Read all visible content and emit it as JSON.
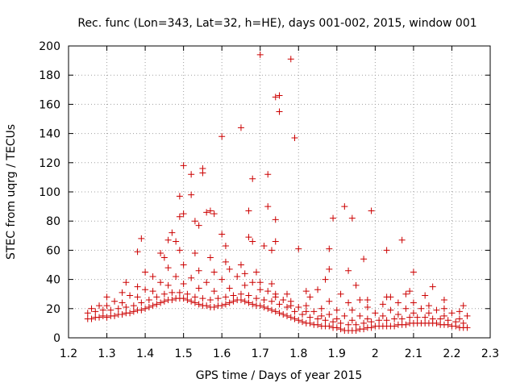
{
  "chart_data": {
    "type": "scatter",
    "title": "Rec. func (Lon=343, Lat=32, h=HE), days 001-002, 2015, window 001",
    "xlabel": "GPS time / Days of year 2015",
    "ylabel": "STEC from uqrg / TECUs",
    "xlim": [
      1.2,
      2.3
    ],
    "ylim": [
      0,
      200
    ],
    "grid": true,
    "marker": "plus",
    "color": "#cc0000",
    "x_ticks": [
      "1.2",
      "1.3",
      "1.4",
      "1.5",
      "1.6",
      "1.7",
      "1.8",
      "1.9",
      "2",
      "2.1",
      "2.2",
      "2.3"
    ],
    "y_ticks": [
      "0",
      "20",
      "40",
      "60",
      "80",
      "100",
      "120",
      "140",
      "160",
      "180",
      "200"
    ],
    "series": [
      {
        "points": [
          [
            1.25,
            13
          ],
          [
            1.26,
            13
          ],
          [
            1.27,
            14
          ],
          [
            1.28,
            14
          ],
          [
            1.29,
            15
          ],
          [
            1.3,
            14
          ],
          [
            1.31,
            15
          ],
          [
            1.32,
            15
          ],
          [
            1.33,
            16
          ],
          [
            1.34,
            16
          ],
          [
            1.35,
            17
          ],
          [
            1.36,
            17
          ],
          [
            1.37,
            18
          ],
          [
            1.38,
            19
          ],
          [
            1.39,
            19
          ],
          [
            1.4,
            20
          ],
          [
            1.41,
            21
          ],
          [
            1.42,
            22
          ],
          [
            1.43,
            23
          ],
          [
            1.44,
            24
          ],
          [
            1.45,
            25
          ],
          [
            1.46,
            26
          ],
          [
            1.47,
            26
          ],
          [
            1.48,
            27
          ],
          [
            1.49,
            27
          ],
          [
            1.5,
            27
          ],
          [
            1.51,
            26
          ],
          [
            1.52,
            25
          ],
          [
            1.53,
            24
          ],
          [
            1.54,
            23
          ],
          [
            1.55,
            22
          ],
          [
            1.56,
            22
          ],
          [
            1.57,
            21
          ],
          [
            1.58,
            21
          ],
          [
            1.59,
            22
          ],
          [
            1.6,
            22
          ],
          [
            1.61,
            23
          ],
          [
            1.62,
            24
          ],
          [
            1.63,
            25
          ],
          [
            1.64,
            26
          ],
          [
            1.65,
            26
          ],
          [
            1.66,
            25
          ],
          [
            1.67,
            24
          ],
          [
            1.68,
            23
          ],
          [
            1.69,
            22
          ],
          [
            1.7,
            22
          ],
          [
            1.71,
            21
          ],
          [
            1.72,
            20
          ],
          [
            1.73,
            19
          ],
          [
            1.74,
            18
          ],
          [
            1.75,
            17
          ],
          [
            1.76,
            16
          ],
          [
            1.77,
            15
          ],
          [
            1.78,
            14
          ],
          [
            1.79,
            13
          ],
          [
            1.8,
            12
          ],
          [
            1.81,
            11
          ],
          [
            1.82,
            10
          ],
          [
            1.83,
            10
          ],
          [
            1.84,
            9
          ],
          [
            1.85,
            9
          ],
          [
            1.86,
            8
          ],
          [
            1.87,
            8
          ],
          [
            1.88,
            8
          ],
          [
            1.89,
            7
          ],
          [
            1.9,
            7
          ],
          [
            1.91,
            6
          ],
          [
            1.92,
            5
          ],
          [
            1.93,
            5
          ],
          [
            1.94,
            5
          ],
          [
            1.95,
            5
          ],
          [
            1.96,
            6
          ],
          [
            1.97,
            6
          ],
          [
            1.98,
            7
          ],
          [
            1.99,
            7
          ],
          [
            2.0,
            8
          ],
          [
            2.01,
            8
          ],
          [
            2.02,
            8
          ],
          [
            2.03,
            8
          ],
          [
            2.04,
            8
          ],
          [
            2.05,
            8
          ],
          [
            2.06,
            9
          ],
          [
            2.07,
            9
          ],
          [
            2.08,
            9
          ],
          [
            2.09,
            10
          ],
          [
            2.1,
            10
          ],
          [
            2.11,
            10
          ],
          [
            2.12,
            10
          ],
          [
            2.13,
            10
          ],
          [
            2.14,
            10
          ],
          [
            2.15,
            10
          ],
          [
            2.16,
            10
          ],
          [
            2.17,
            9
          ],
          [
            2.18,
            9
          ],
          [
            2.19,
            9
          ],
          [
            2.2,
            8
          ],
          [
            2.21,
            8
          ],
          [
            2.22,
            7
          ],
          [
            2.23,
            7
          ],
          [
            2.24,
            7
          ],
          [
            1.25,
            17
          ],
          [
            1.27,
            18
          ],
          [
            1.29,
            19
          ],
          [
            1.31,
            19
          ],
          [
            1.33,
            20
          ],
          [
            1.35,
            21
          ],
          [
            1.37,
            22
          ],
          [
            1.39,
            24
          ],
          [
            1.41,
            26
          ],
          [
            1.43,
            28
          ],
          [
            1.45,
            30
          ],
          [
            1.47,
            31
          ],
          [
            1.49,
            31
          ],
          [
            1.51,
            30
          ],
          [
            1.53,
            28
          ],
          [
            1.55,
            27
          ],
          [
            1.57,
            26
          ],
          [
            1.59,
            27
          ],
          [
            1.61,
            28
          ],
          [
            1.63,
            29
          ],
          [
            1.65,
            30
          ],
          [
            1.67,
            29
          ],
          [
            1.69,
            27
          ],
          [
            1.71,
            26
          ],
          [
            1.73,
            25
          ],
          [
            1.75,
            23
          ],
          [
            1.77,
            21
          ],
          [
            1.79,
            18
          ],
          [
            1.81,
            16
          ],
          [
            1.83,
            14
          ],
          [
            1.85,
            13
          ],
          [
            1.87,
            12
          ],
          [
            1.89,
            11
          ],
          [
            1.91,
            10
          ],
          [
            1.93,
            9
          ],
          [
            1.95,
            9
          ],
          [
            1.97,
            10
          ],
          [
            1.99,
            11
          ],
          [
            2.01,
            12
          ],
          [
            2.03,
            12
          ],
          [
            2.05,
            13
          ],
          [
            2.07,
            13
          ],
          [
            2.09,
            14
          ],
          [
            2.11,
            14
          ],
          [
            2.13,
            14
          ],
          [
            2.15,
            13
          ],
          [
            2.17,
            13
          ],
          [
            2.19,
            12
          ],
          [
            2.21,
            11
          ],
          [
            2.23,
            10
          ],
          [
            1.26,
            20
          ],
          [
            1.3,
            22
          ],
          [
            1.34,
            24
          ],
          [
            1.38,
            28
          ],
          [
            1.42,
            32
          ],
          [
            1.46,
            36
          ],
          [
            1.5,
            37
          ],
          [
            1.54,
            34
          ],
          [
            1.58,
            32
          ],
          [
            1.62,
            34
          ],
          [
            1.66,
            36
          ],
          [
            1.7,
            33
          ],
          [
            1.74,
            28
          ],
          [
            1.78,
            22
          ],
          [
            1.82,
            18
          ],
          [
            1.86,
            15
          ],
          [
            1.9,
            13
          ],
          [
            1.94,
            12
          ],
          [
            1.98,
            13
          ],
          [
            2.02,
            15
          ],
          [
            2.06,
            16
          ],
          [
            2.1,
            17
          ],
          [
            2.14,
            17
          ],
          [
            2.18,
            15
          ],
          [
            2.22,
            13
          ],
          [
            1.28,
            22
          ],
          [
            1.32,
            25
          ],
          [
            1.36,
            29
          ],
          [
            1.4,
            33
          ],
          [
            1.44,
            38
          ],
          [
            1.48,
            42
          ],
          [
            1.52,
            41
          ],
          [
            1.56,
            38
          ],
          [
            1.6,
            40
          ],
          [
            1.64,
            42
          ],
          [
            1.68,
            38
          ],
          [
            1.72,
            32
          ],
          [
            1.76,
            26
          ],
          [
            1.8,
            21
          ],
          [
            1.84,
            18
          ],
          [
            1.88,
            16
          ],
          [
            1.92,
            15
          ],
          [
            1.96,
            15
          ],
          [
            2.0,
            17
          ],
          [
            2.04,
            19
          ],
          [
            2.08,
            20
          ],
          [
            2.12,
            20
          ],
          [
            2.16,
            19
          ],
          [
            2.2,
            17
          ],
          [
            2.24,
            15
          ],
          [
            1.3,
            28
          ],
          [
            1.34,
            31
          ],
          [
            1.38,
            35
          ],
          [
            1.42,
            42
          ],
          [
            1.46,
            48
          ],
          [
            1.5,
            50
          ],
          [
            1.54,
            46
          ],
          [
            1.58,
            45
          ],
          [
            1.62,
            47
          ],
          [
            1.66,
            44
          ],
          [
            1.7,
            38
          ],
          [
            1.74,
            30
          ],
          [
            1.78,
            25
          ],
          [
            1.82,
            22
          ],
          [
            1.86,
            20
          ],
          [
            1.9,
            19
          ],
          [
            1.94,
            19
          ],
          [
            1.98,
            21
          ],
          [
            2.02,
            23
          ],
          [
            2.06,
            24
          ],
          [
            2.1,
            24
          ],
          [
            2.14,
            22
          ],
          [
            2.18,
            20
          ],
          [
            2.22,
            18
          ],
          [
            1.35,
            38
          ],
          [
            1.4,
            45
          ],
          [
            1.45,
            55
          ],
          [
            1.49,
            60
          ],
          [
            1.53,
            58
          ],
          [
            1.57,
            55
          ],
          [
            1.61,
            52
          ],
          [
            1.65,
            50
          ],
          [
            1.69,
            45
          ],
          [
            1.73,
            37
          ],
          [
            1.77,
            30
          ],
          [
            1.83,
            28
          ],
          [
            1.88,
            25
          ],
          [
            1.93,
            24
          ],
          [
            1.98,
            26
          ],
          [
            2.03,
            28
          ],
          [
            2.08,
            30
          ],
          [
            2.13,
            29
          ],
          [
            2.18,
            26
          ],
          [
            2.23,
            22
          ],
          [
            1.38,
            59
          ],
          [
            1.39,
            68
          ],
          [
            1.44,
            58
          ],
          [
            1.46,
            67
          ],
          [
            1.47,
            72
          ],
          [
            1.48,
            66
          ],
          [
            1.49,
            83
          ],
          [
            1.49,
            97
          ],
          [
            1.5,
            85
          ],
          [
            1.5,
            118
          ],
          [
            1.52,
            112
          ],
          [
            1.52,
            98
          ],
          [
            1.53,
            80
          ],
          [
            1.54,
            77
          ],
          [
            1.55,
            113
          ],
          [
            1.55,
            116
          ],
          [
            1.56,
            86
          ],
          [
            1.57,
            87
          ],
          [
            1.58,
            85
          ],
          [
            1.6,
            138
          ],
          [
            1.6,
            71
          ],
          [
            1.61,
            63
          ],
          [
            1.65,
            144
          ],
          [
            1.67,
            87
          ],
          [
            1.67,
            69
          ],
          [
            1.68,
            109
          ],
          [
            1.68,
            66
          ],
          [
            1.7,
            194
          ],
          [
            1.71,
            63
          ],
          [
            1.72,
            112
          ],
          [
            1.72,
            90
          ],
          [
            1.73,
            60
          ],
          [
            1.74,
            81
          ],
          [
            1.74,
            66
          ],
          [
            1.74,
            165
          ],
          [
            1.75,
            166
          ],
          [
            1.75,
            155
          ],
          [
            1.78,
            191
          ],
          [
            1.79,
            137
          ],
          [
            1.8,
            61
          ],
          [
            1.88,
            61
          ],
          [
            1.89,
            82
          ],
          [
            1.92,
            90
          ],
          [
            1.94,
            82
          ],
          [
            1.97,
            54
          ],
          [
            1.99,
            87
          ],
          [
            2.03,
            60
          ],
          [
            2.07,
            67
          ],
          [
            2.1,
            45
          ],
          [
            2.15,
            35
          ],
          [
            1.82,
            32
          ],
          [
            1.85,
            33
          ],
          [
            1.87,
            40
          ],
          [
            1.88,
            47
          ],
          [
            1.91,
            30
          ],
          [
            1.93,
            46
          ],
          [
            1.95,
            36
          ],
          [
            1.96,
            26
          ],
          [
            2.04,
            28
          ],
          [
            2.09,
            32
          ]
        ]
      }
    ]
  }
}
